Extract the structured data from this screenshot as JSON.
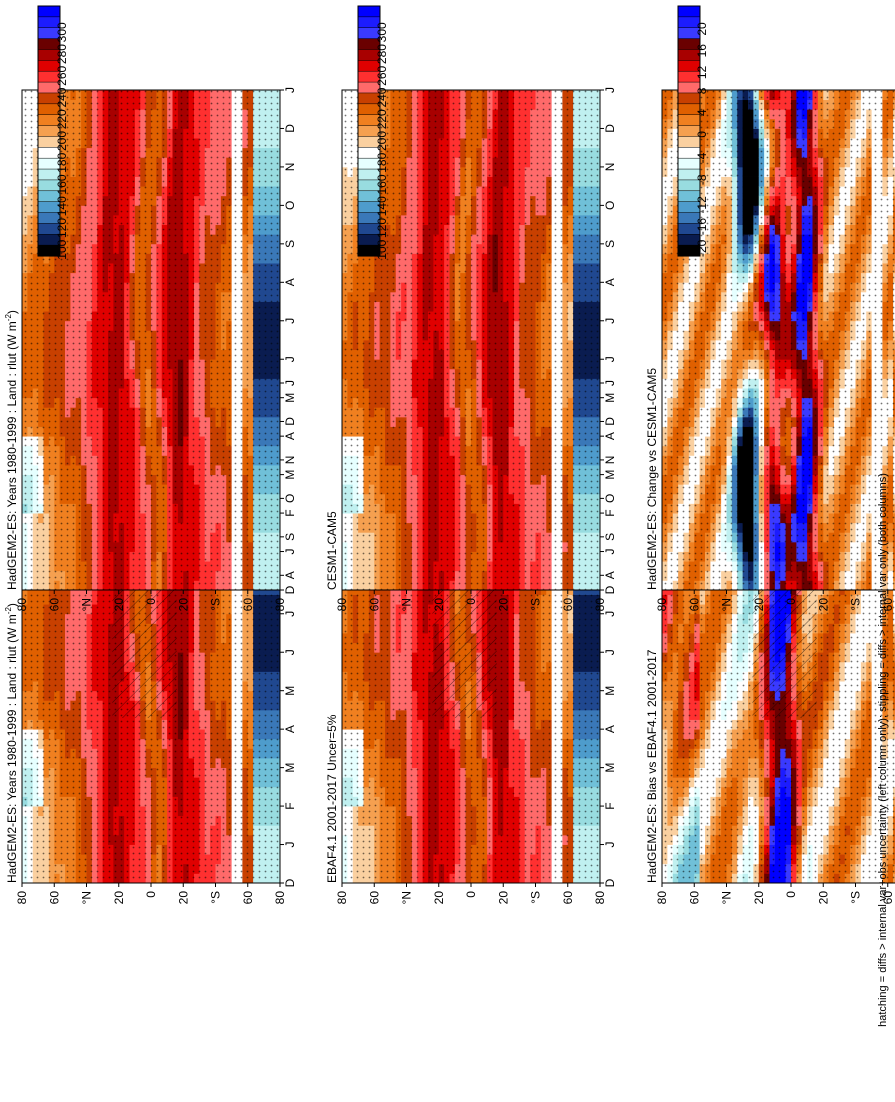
{
  "figure": {
    "footnote": "hatching = diffs > internal var+obs uncertainty (left column only); stippling = diffs > internal var only (both columns)"
  },
  "chart_data": {
    "type": "heatmap",
    "orientation": "rotated 90 degrees clockwise",
    "months": [
      "D",
      "J",
      "F",
      "M",
      "A",
      "M",
      "J",
      "J",
      "A",
      "S",
      "O",
      "N",
      "D",
      "J"
    ],
    "latitude_ticks": [
      "80",
      "60",
      "°N",
      "20",
      "0",
      "20",
      "°S",
      "60",
      "80"
    ],
    "colorbar_absolute": {
      "unit": "W m^-2",
      "ticks": [
        "300",
        "280",
        "260",
        "240",
        "220",
        "200",
        "180",
        "160",
        "140",
        "120",
        "100"
      ],
      "levels": [
        310,
        300,
        290,
        280,
        270,
        260,
        250,
        240,
        230,
        220,
        210,
        200,
        190,
        180,
        170,
        160,
        150,
        140,
        130,
        120,
        110,
        100,
        90
      ],
      "colors": [
        "#0000ff",
        "#1c1cff",
        "#3a3aff",
        "#6a0000",
        "#a80000",
        "#e00000",
        "#ff3030",
        "#ff6a6a",
        "#c84000",
        "#e06000",
        "#f08020",
        "#f5a050",
        "#fad0a0",
        "#ffffff",
        "#e6ffff",
        "#c0f0f0",
        "#98dce0",
        "#70c0d8",
        "#4e9ccc",
        "#3a78b8",
        "#204890",
        "#0a1c50",
        "#000000"
      ]
    },
    "colorbar_difference": {
      "unit": "W m^-2",
      "ticks": [
        "20",
        "16",
        "12",
        "8",
        "4",
        "0",
        "-4",
        "-8",
        "-12",
        "-16",
        "-20"
      ],
      "levels": [
        22,
        20,
        18,
        16,
        14,
        12,
        10,
        8,
        6,
        4,
        2,
        0,
        -2,
        -4,
        -6,
        -8,
        -10,
        -12,
        -14,
        -16,
        -18,
        -20,
        -22
      ],
      "colors": [
        "#0000ff",
        "#1c1cff",
        "#3a3aff",
        "#6a0000",
        "#a80000",
        "#e00000",
        "#ff3030",
        "#ff6a6a",
        "#c84000",
        "#e06000",
        "#f08020",
        "#f5a050",
        "#fad0a0",
        "#ffffff",
        "#e6ffff",
        "#c0f0f0",
        "#98dce0",
        "#70c0d8",
        "#4e9ccc",
        "#3a78b8",
        "#204890",
        "#0a1c50",
        "#000000"
      ]
    },
    "panels": [
      {
        "id": "left-top",
        "title": "HadGEM2-ES: Years 1980-1999 : Land : rlut (W m",
        "title_sup": "-2",
        "title_end": ")",
        "kind": "absolute",
        "hatching": true
      },
      {
        "id": "left-middle",
        "title": "EBAF4.1 2001-2017 Uncer=5%",
        "title_sup": "",
        "title_end": "",
        "kind": "absolute",
        "hatching": true
      },
      {
        "id": "left-bottom",
        "title": "HadGEM2-ES: Bias vs EBAF4.1 2001-2017",
        "title_sup": "",
        "title_end": "",
        "kind": "difference",
        "hatching": true
      },
      {
        "id": "right-top",
        "title": "HadGEM2-ES: Years 1980-1999 : Land : rlut (W m",
        "title_sup": "-2",
        "title_end": ")",
        "kind": "absolute",
        "hatching": false
      },
      {
        "id": "right-middle",
        "title": "CESM1-CAM5",
        "title_sup": "",
        "title_end": "",
        "kind": "absolute",
        "hatching": false
      },
      {
        "id": "right-bottom",
        "title": "HadGEM2-ES: Change vs CESM1-CAM5",
        "title_sup": "",
        "title_end": "",
        "kind": "difference",
        "hatching": false
      }
    ]
  }
}
